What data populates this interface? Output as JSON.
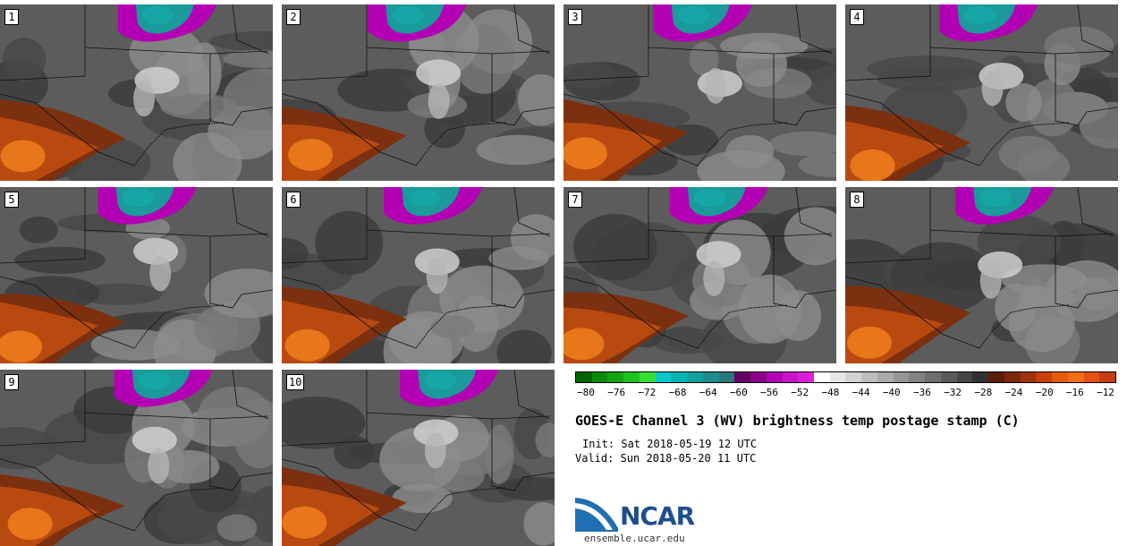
{
  "panels": [
    {
      "label": "1",
      "col": 0,
      "row": 0
    },
    {
      "label": "2",
      "col": 1,
      "row": 0
    },
    {
      "label": "3",
      "col": 2,
      "row": 0
    },
    {
      "label": "4",
      "col": 3,
      "row": 0
    },
    {
      "label": "5",
      "col": 0,
      "row": 1
    },
    {
      "label": "6",
      "col": 1,
      "row": 1
    },
    {
      "label": "7",
      "col": 2,
      "row": 1
    },
    {
      "label": "8",
      "col": 3,
      "row": 1
    },
    {
      "label": "9",
      "col": 0,
      "row": 2
    },
    {
      "label": "10",
      "col": 1,
      "row": 2
    }
  ],
  "colorbar": {
    "colors": [
      "#006400",
      "#0b8a0b",
      "#14a514",
      "#1ec21e",
      "#33e033",
      "#00c8c8",
      "#00b4b4",
      "#14a0a0",
      "#1e8c8c",
      "#287878",
      "#640064",
      "#8c008c",
      "#b400b4",
      "#c814c8",
      "#dc1edc",
      "#ffffff",
      "#e6e6e6",
      "#d2d2d2",
      "#bebebe",
      "#aaaaaa",
      "#969696",
      "#828282",
      "#6e6e6e",
      "#5a5a5a",
      "#464646",
      "#323232",
      "#5a1e0a",
      "#7d280a",
      "#a0320a",
      "#c8400a",
      "#e65a0a",
      "#f06e14",
      "#e65014",
      "#c83c14"
    ],
    "ticks": [
      "−80",
      "−76",
      "−72",
      "−68",
      "−64",
      "−60",
      "−56",
      "−52",
      "−48",
      "−44",
      "−40",
      "−36",
      "−32",
      "−28",
      "−24",
      "−20",
      "−16",
      "−12"
    ]
  },
  "title": "GOES-E Channel 3 (WV) brightness temp postage stamp (C)",
  "init": "Init: Sat 2018-05-19 12 UTC",
  "valid": "Valid: Sun 2018-05-20 11 UTC",
  "logo": {
    "name": "NCAR",
    "url": "ensemble.ucar.edu"
  }
}
